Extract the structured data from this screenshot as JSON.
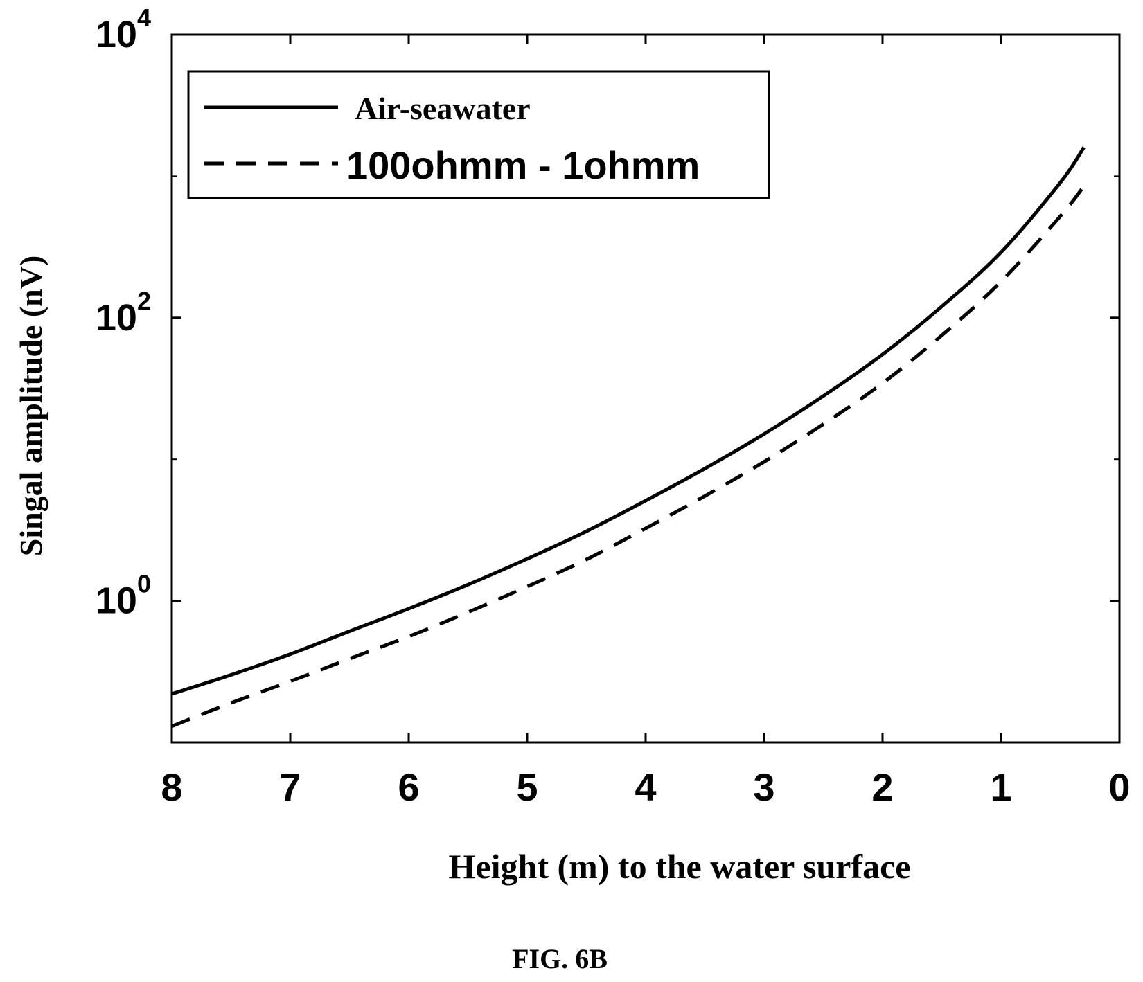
{
  "caption": "FIG. 6B",
  "chart_data": {
    "type": "line",
    "title": "",
    "xlabel": "Height (m) to the water surface",
    "ylabel": "Singal amplitude (nV)",
    "x_reversed": true,
    "xlim": [
      8,
      0
    ],
    "ylim": [
      0.1,
      10000
    ],
    "y_scale": "log",
    "grid": false,
    "legend_position": "top-left",
    "x_ticks": [
      8,
      7,
      6,
      5,
      4,
      3,
      2,
      1,
      0
    ],
    "x_tick_labels": [
      "8",
      "7",
      "6",
      "5",
      "4",
      "3",
      "2",
      "1",
      "0"
    ],
    "y_ticks": [
      {
        "value": 1,
        "base": "10",
        "exp": "0"
      },
      {
        "value": 100,
        "base": "10",
        "exp": "2"
      },
      {
        "value": 10000,
        "base": "10",
        "exp": "4"
      }
    ],
    "series": [
      {
        "name": "Air-seawater",
        "style": "solid",
        "color": "#000000",
        "x": [
          8,
          7.5,
          7,
          6.5,
          6,
          5.5,
          5,
          4.5,
          4,
          3.5,
          3,
          2.5,
          2,
          1.5,
          1,
          0.5,
          0.3
        ],
        "y": [
          0.22,
          0.3,
          0.42,
          0.61,
          0.88,
          1.3,
          1.98,
          3.1,
          5.1,
          8.6,
          15.1,
          28.0,
          55.0,
          120,
          290,
          900,
          1600
        ]
      },
      {
        "name": "100ohmm - 1ohmm",
        "style": "dashed",
        "color": "#000000",
        "x": [
          8,
          7.5,
          7,
          6.5,
          6,
          5.5,
          5,
          4.5,
          4,
          3.5,
          3,
          2.5,
          2,
          1.5,
          1,
          0.5,
          0.3
        ],
        "y": [
          0.13,
          0.19,
          0.27,
          0.39,
          0.56,
          0.83,
          1.26,
          1.96,
          3.25,
          5.5,
          9.6,
          17.7,
          34.5,
          75.0,
          180,
          520,
          850
        ]
      }
    ]
  }
}
